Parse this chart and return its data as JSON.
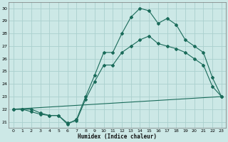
{
  "xlabel": "Humidex (Indice chaleur)",
  "bg_color": "#cce8e6",
  "grid_color": "#aad0ce",
  "line_color": "#1a6b5a",
  "xlim": [
    -0.5,
    23.5
  ],
  "ylim": [
    20.5,
    30.5
  ],
  "xticks": [
    0,
    1,
    2,
    3,
    4,
    5,
    6,
    7,
    8,
    9,
    10,
    11,
    12,
    13,
    14,
    15,
    16,
    17,
    18,
    19,
    20,
    21,
    22,
    23
  ],
  "yticks": [
    21,
    22,
    23,
    24,
    25,
    26,
    27,
    28,
    29,
    30
  ],
  "series1_y": [
    22.0,
    22.0,
    22.0,
    21.7,
    21.5,
    21.5,
    20.8,
    21.2,
    23.0,
    24.7,
    26.5,
    26.5,
    28.0,
    29.3,
    30.0,
    29.8,
    28.8,
    29.2,
    28.7,
    27.5,
    27.0,
    26.5,
    24.5,
    23.0
  ],
  "series2_y": [
    22.0,
    22.0,
    21.8,
    21.6,
    21.5,
    21.5,
    20.9,
    21.1,
    22.8,
    24.2,
    25.5,
    25.5,
    26.5,
    27.0,
    27.5,
    27.8,
    27.2,
    27.0,
    26.8,
    26.5,
    26.0,
    25.5,
    23.8,
    23.0
  ],
  "series3_x": [
    0,
    23
  ],
  "series3_y": [
    22.0,
    23.0
  ]
}
